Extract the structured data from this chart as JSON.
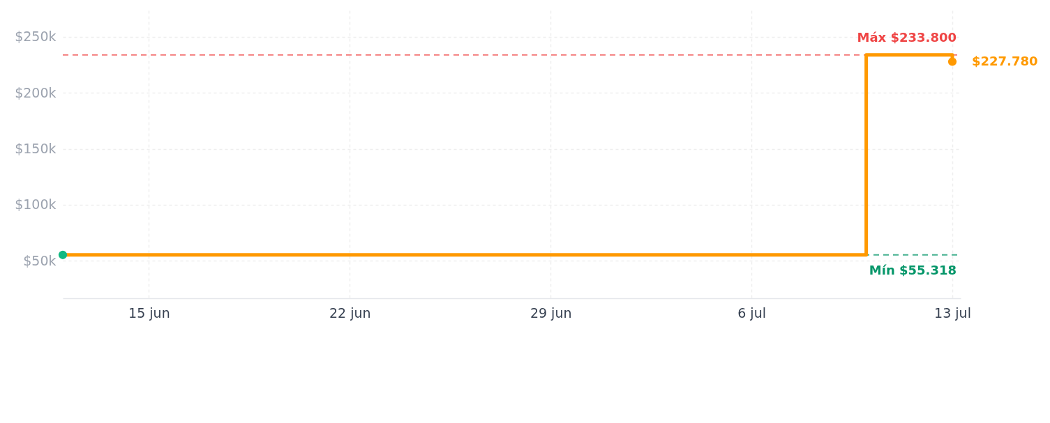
{
  "chart_data": {
    "type": "step",
    "series": [
      {
        "color": "#ff9900",
        "x": [
          "--06-12",
          "--07-10",
          "--07-13"
        ],
        "values": [
          55318,
          233800,
          227780
        ]
      },
      {
        "type": "scatter",
        "color": "#10b981",
        "x": [
          "--06-12"
        ],
        "values": [
          55318
        ]
      },
      {
        "type": "scatter",
        "color": "#ff9900",
        "x": [
          "--07-13"
        ],
        "values": [
          227780
        ],
        "value_labels": [
          "$227.780"
        ]
      }
    ],
    "xlim": [
      "--06-12",
      "--07-13T07:00"
    ],
    "xticks": [
      {
        "value": "--06-15",
        "label": "15 jun"
      },
      {
        "value": "--06-22",
        "label": "22 jun"
      },
      {
        "value": "--06-29",
        "label": "29 jun"
      },
      {
        "value": "--07-06",
        "label": "6 jul"
      },
      {
        "value": "--07-13",
        "label": "13 jul"
      }
    ],
    "ylim": [
      16600,
      273500
    ],
    "yticks": [
      {
        "value": 50000,
        "label": "$50k"
      },
      {
        "value": 100000,
        "label": "$100k"
      },
      {
        "value": 150000,
        "label": "$150k"
      },
      {
        "value": 200000,
        "label": "$200k"
      },
      {
        "value": 250000,
        "label": "$250k"
      }
    ],
    "grid": true,
    "ref_lines": [
      {
        "axis": "y",
        "value": 233800,
        "label": "Máx $233.800",
        "color": "#ef4444",
        "line_style": "dashed"
      },
      {
        "axis": "y",
        "value": 55318,
        "label": "Mín $55.318",
        "color": "#059669",
        "line_style": "dashed"
      }
    ]
  }
}
